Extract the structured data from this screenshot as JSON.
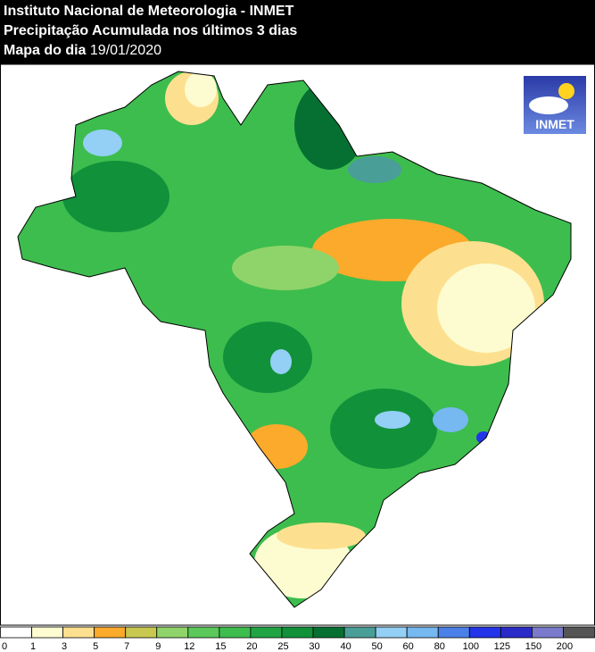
{
  "header": {
    "lines": [
      "Instituto Nacional de Meteorologia - INMET",
      "Precipitação Acumulada nos últimos 3 dias"
    ],
    "date_prefix": "Mapa do dia",
    "date": "19/01/2020"
  },
  "logo": {
    "text": "INMET"
  },
  "legend": {
    "labels": [
      0,
      1,
      3,
      5,
      7,
      9,
      12,
      15,
      20,
      25,
      30,
      40,
      50,
      60,
      80,
      100,
      125,
      150,
      200
    ],
    "colors": [
      "#ffffff",
      "#fdfbd0",
      "#fde08f",
      "#fbaa2b",
      "#c8c850",
      "#8fd46a",
      "#5ac85a",
      "#3dbd4e",
      "#21a544",
      "#11913a",
      "#067032",
      "#4a9e98",
      "#94cff5",
      "#76b8f0",
      "#4a80e8",
      "#2434e8",
      "#2a2ac8",
      "#7a7acc",
      "#555555"
    ]
  }
}
